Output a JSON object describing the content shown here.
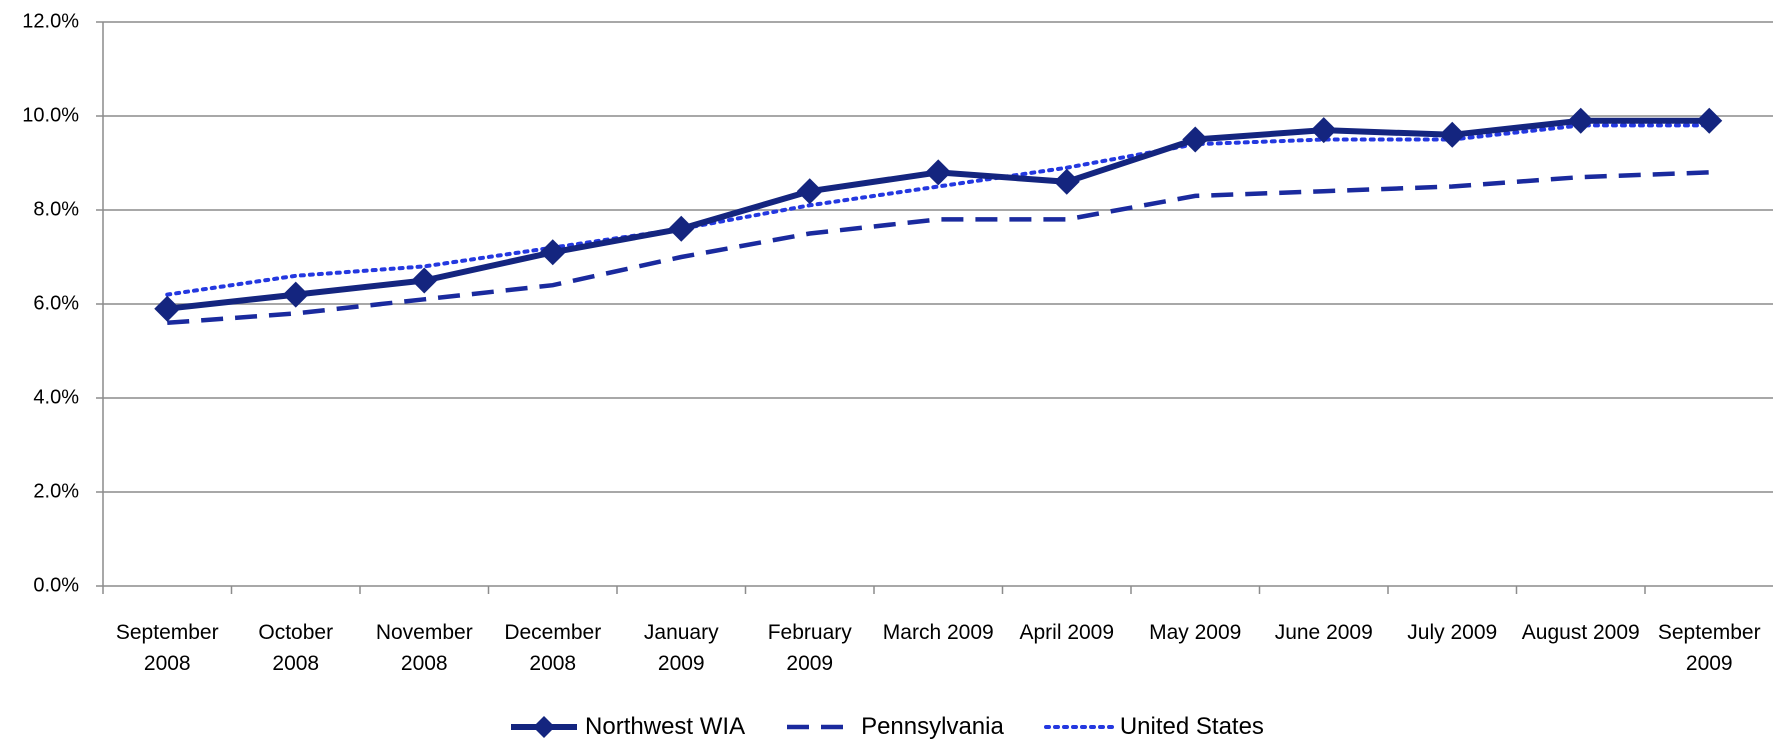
{
  "chart_data": {
    "type": "line",
    "categories": [
      "September 2008",
      "October 2008",
      "November 2008",
      "December 2008",
      "January 2009",
      "February 2009",
      "March 2009",
      "April 2009",
      "May 2009",
      "June 2009",
      "July 2009",
      "August 2009",
      "September 2009"
    ],
    "series": [
      {
        "name": "Northwest WIA",
        "color": "#14257f",
        "style": "solid",
        "marker": "diamond",
        "values": [
          5.9,
          6.2,
          6.5,
          7.1,
          7.6,
          8.4,
          8.8,
          8.6,
          9.5,
          9.7,
          9.6,
          9.9,
          9.9
        ]
      },
      {
        "name": "Pennsylvania",
        "color": "#1a2a9e",
        "style": "dashed",
        "values": [
          5.6,
          5.8,
          6.1,
          6.4,
          7.0,
          7.5,
          7.8,
          7.8,
          8.3,
          8.4,
          8.5,
          8.7,
          8.8
        ]
      },
      {
        "name": "United States",
        "color": "#2438e0",
        "style": "dotted",
        "values": [
          6.2,
          6.6,
          6.8,
          7.2,
          7.6,
          8.1,
          8.5,
          8.9,
          9.4,
          9.5,
          9.5,
          9.8,
          9.8
        ]
      }
    ],
    "ylim": [
      0,
      12
    ],
    "yticks": [
      {
        "value": 0,
        "label": "0.0%"
      },
      {
        "value": 2,
        "label": "2.0%"
      },
      {
        "value": 4,
        "label": "4.0%"
      },
      {
        "value": 6,
        "label": "6.0%"
      },
      {
        "value": 8,
        "label": "8.0%"
      },
      {
        "value": 10,
        "label": "10.0%"
      },
      {
        "value": 12,
        "label": "12.0%"
      }
    ],
    "grid": true,
    "legend": "bottom"
  }
}
